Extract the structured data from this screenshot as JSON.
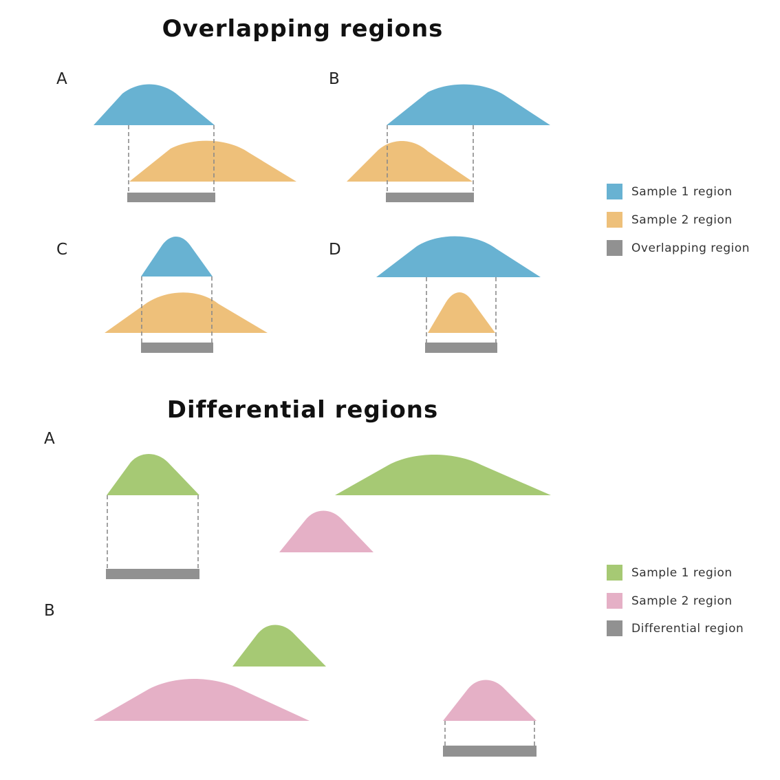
{
  "overlap": {
    "title": "Overlapping regions",
    "panels": [
      "A",
      "B",
      "C",
      "D"
    ],
    "legend": [
      "Sample 1 region",
      "Sample 2 region",
      "Overlapping region"
    ],
    "colors": {
      "sample1": "#68b2d2",
      "sample2": "#eec07a",
      "result": "#919191"
    }
  },
  "differential": {
    "title": "Differential regions",
    "panels": [
      "A",
      "B"
    ],
    "legend": [
      "Sample 1 region",
      "Sample 2 region",
      "Differential region"
    ],
    "colors": {
      "sample1": "#a6c974",
      "sample2": "#e5b0c6",
      "result": "#919191"
    }
  }
}
